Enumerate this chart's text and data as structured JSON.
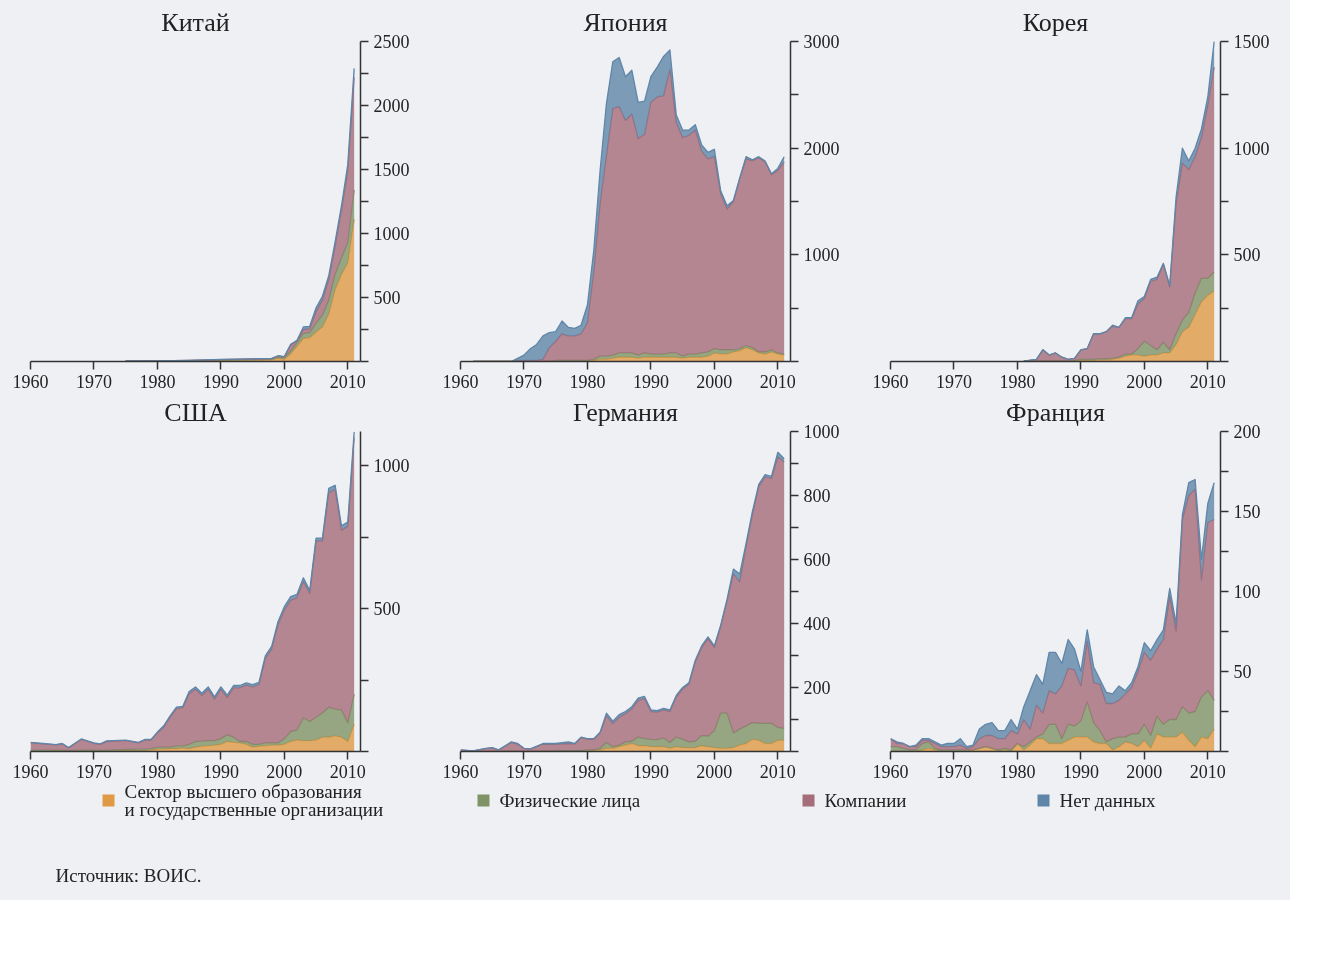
{
  "chart_data": [
    {
      "type": "area",
      "title": "Китай",
      "stacked": true,
      "legend": "bottom",
      "annotations": [
        "Источник: ВОИС."
      ],
      "xlim": [
        1960,
        2012
      ],
      "xticks": [
        1960,
        1970,
        1980,
        1990,
        2000,
        2010
      ],
      "ylim": [
        0,
        2500
      ],
      "yticks": [
        {
          "value": 0,
          "label": null
        },
        {
          "value": 250,
          "label": null
        },
        500,
        {
          "value": 750,
          "label": null
        },
        1000,
        {
          "value": 1250,
          "label": null
        },
        1500,
        {
          "value": 1750,
          "label": null
        },
        2000,
        {
          "value": 2250,
          "label": null
        },
        2500
      ],
      "x": [
        1975,
        1980,
        1985,
        1990,
        1995,
        1998,
        1999,
        2000,
        2001,
        2002,
        2003,
        2004,
        2005,
        2006,
        2007,
        2008,
        2009,
        2010,
        2011
      ],
      "series": [
        {
          "name": "Сектор высшего образования\nи государственные организации",
          "color": "#e09a45",
          "values": [
            2,
            3,
            5,
            8,
            10,
            12,
            25,
            15,
            60,
            120,
            180,
            185,
            230,
            270,
            370,
            560,
            680,
            770,
            1110
          ]
        },
        {
          "name": "Физические лица",
          "color": "#7f9366",
          "values": [
            1,
            1,
            2,
            3,
            5,
            5,
            8,
            15,
            20,
            30,
            40,
            40,
            70,
            90,
            110,
            120,
            130,
            160,
            230
          ]
        },
        {
          "name": "Компании",
          "color": "#a56c79",
          "values": [
            1,
            1,
            2,
            4,
            5,
            6,
            10,
            5,
            50,
            10,
            30,
            30,
            90,
            120,
            160,
            220,
            370,
            560,
            880
          ]
        },
        {
          "name": "Нет данных",
          "color": "#5f86a8",
          "values": [
            0,
            0,
            0,
            1,
            1,
            2,
            2,
            3,
            5,
            5,
            20,
            20,
            30,
            30,
            30,
            35,
            35,
            50,
            70
          ]
        }
      ]
    },
    {
      "type": "area",
      "title": "Япония",
      "stacked": true,
      "xlim": [
        1960,
        2012
      ],
      "xticks": [
        1960,
        1970,
        1980,
        1990,
        2000,
        2010
      ],
      "ylim": [
        0,
        3000
      ],
      "yticks": [
        {
          "value": 0,
          "label": null
        },
        {
          "value": 500,
          "label": null
        },
        1000,
        {
          "value": 1500,
          "label": null
        },
        2000,
        {
          "value": 2500,
          "label": null
        },
        3000
      ],
      "x": [
        1962,
        1968,
        1969,
        1970,
        1971,
        1972,
        1973,
        1974,
        1975,
        1976,
        1977,
        1978,
        1979,
        1980,
        1981,
        1982,
        1983,
        1984,
        1985,
        1986,
        1987,
        1988,
        1989,
        1990,
        1991,
        1992,
        1993,
        1994,
        1995,
        1996,
        1997,
        1998,
        1999,
        2000,
        2001,
        2002,
        2003,
        2004,
        2005,
        2006,
        2007,
        2008,
        2009,
        2010,
        2011
      ],
      "series": [
        {
          "color": "#e09a45",
          "values": [
            0,
            0,
            0,
            0,
            0,
            0,
            0,
            0,
            10,
            10,
            10,
            10,
            10,
            10,
            10,
            20,
            20,
            30,
            40,
            40,
            40,
            30,
            40,
            40,
            40,
            40,
            40,
            40,
            30,
            40,
            40,
            40,
            50,
            80,
            70,
            70,
            90,
            100,
            130,
            110,
            80,
            70,
            90,
            70,
            60
          ]
        },
        {
          "color": "#7f9366",
          "values": [
            0,
            0,
            0,
            0,
            0,
            0,
            0,
            0,
            0,
            0,
            0,
            0,
            0,
            0,
            10,
            30,
            30,
            30,
            40,
            40,
            40,
            30,
            40,
            30,
            30,
            30,
            40,
            40,
            20,
            30,
            30,
            40,
            40,
            40,
            40,
            40,
            20,
            20,
            20,
            20,
            10,
            20,
            20,
            10,
            10
          ]
        },
        {
          "color": "#a56c79",
          "values": [
            0,
            0,
            10,
            10,
            10,
            10,
            20,
            130,
            180,
            250,
            230,
            230,
            250,
            350,
            820,
            1430,
            1880,
            2310,
            2310,
            2180,
            2240,
            2030,
            2050,
            2360,
            2410,
            2420,
            2660,
            2160,
            2050,
            2050,
            2100,
            1890,
            1810,
            1800,
            1460,
            1320,
            1390,
            1590,
            1750,
            1750,
            1820,
            1780,
            1640,
            1710,
            1800
          ]
        },
        {
          "color": "#5f86a8",
          "values": [
            0,
            0,
            20,
            50,
            110,
            150,
            220,
            140,
            90,
            120,
            80,
            70,
            80,
            170,
            200,
            310,
            490,
            440,
            460,
            410,
            410,
            340,
            310,
            240,
            280,
            370,
            180,
            70,
            70,
            50,
            50,
            60,
            60,
            70,
            30,
            30,
            10,
            10,
            20,
            10,
            10,
            10,
            10,
            20,
            50
          ]
        }
      ]
    },
    {
      "type": "area",
      "title": "Корея",
      "stacked": true,
      "xlim": [
        1960,
        2012
      ],
      "xticks": [
        1960,
        1970,
        1980,
        1990,
        2000,
        2010
      ],
      "ylim": [
        0,
        1500
      ],
      "yticks": [
        {
          "value": 0,
          "label": null
        },
        {
          "value": 250,
          "label": null
        },
        500,
        {
          "value": 750,
          "label": null
        },
        1000,
        {
          "value": 1250,
          "label": null
        },
        1500
      ],
      "x": [
        1981,
        1983,
        1984,
        1985,
        1986,
        1987,
        1988,
        1989,
        1990,
        1991,
        1992,
        1993,
        1994,
        1995,
        1996,
        1997,
        1998,
        1999,
        2000,
        2001,
        2002,
        2003,
        2004,
        2005,
        2006,
        2007,
        2008,
        2009,
        2010,
        2011
      ],
      "series": [
        {
          "color": "#e09a45",
          "values": [
            0,
            2,
            2,
            2,
            2,
            2,
            2,
            3,
            5,
            5,
            5,
            8,
            8,
            10,
            15,
            25,
            30,
            30,
            25,
            30,
            30,
            40,
            40,
            80,
            140,
            160,
            220,
            280,
            310,
            330
          ]
        },
        {
          "color": "#7f9366",
          "values": [
            0,
            1,
            1,
            1,
            1,
            1,
            1,
            2,
            5,
            5,
            5,
            4,
            4,
            5,
            5,
            10,
            5,
            30,
            70,
            45,
            25,
            50,
            15,
            50,
            55,
            70,
            100,
            110,
            80,
            90
          ]
        },
        {
          "color": "#a56c79",
          "values": [
            2,
            7,
            52,
            27,
            37,
            17,
            7,
            10,
            45,
            50,
            120,
            118,
            128,
            150,
            140,
            165,
            165,
            210,
            200,
            300,
            330,
            365,
            295,
            610,
            735,
            670,
            640,
            660,
            810,
            960
          ]
        },
        {
          "color": "#5f86a8",
          "values": [
            0,
            0,
            0,
            0,
            0,
            0,
            0,
            0,
            0,
            0,
            0,
            0,
            0,
            5,
            0,
            5,
            5,
            15,
            10,
            10,
            10,
            5,
            5,
            30,
            70,
            40,
            40,
            40,
            40,
            120
          ]
        }
      ]
    },
    {
      "type": "area",
      "title": "США",
      "stacked": true,
      "xlim": [
        1960,
        2012
      ],
      "xticks": [
        1960,
        1970,
        1980,
        1990,
        2000,
        2010
      ],
      "ylim": [
        0,
        1120
      ],
      "yticks": [
        {
          "value": 0,
          "label": null
        },
        {
          "value": 250,
          "label": null
        },
        500,
        {
          "value": 750,
          "label": null
        },
        1000
      ],
      "x": [
        1960,
        1962,
        1964,
        1965,
        1966,
        1968,
        1970,
        1971,
        1972,
        1975,
        1977,
        1978,
        1979,
        1980,
        1981,
        1982,
        1983,
        1984,
        1985,
        1986,
        1987,
        1988,
        1989,
        1990,
        1991,
        1992,
        1993,
        1994,
        1995,
        1996,
        1997,
        1998,
        1999,
        2000,
        2001,
        2002,
        2003,
        2004,
        2005,
        2006,
        2007,
        2008,
        2009,
        2010,
        2011
      ],
      "series": [
        {
          "color": "#e09a45",
          "values": [
            0,
            0,
            0,
            0,
            0,
            2,
            2,
            2,
            2,
            3,
            3,
            3,
            5,
            8,
            8,
            10,
            10,
            12,
            10,
            15,
            18,
            20,
            22,
            25,
            35,
            32,
            30,
            25,
            15,
            18,
            20,
            22,
            22,
            25,
            35,
            40,
            38,
            38,
            40,
            50,
            50,
            55,
            50,
            35,
            95
          ]
        },
        {
          "color": "#7f9366",
          "values": [
            5,
            5,
            5,
            5,
            3,
            3,
            3,
            3,
            3,
            4,
            5,
            5,
            5,
            7,
            7,
            5,
            10,
            8,
            15,
            20,
            18,
            18,
            16,
            20,
            23,
            18,
            5,
            10,
            10,
            7,
            10,
            8,
            8,
            20,
            35,
            35,
            80,
            67,
            80,
            85,
            105,
            93,
            95,
            65,
            105
          ]
        },
        {
          "color": "#a56c79",
          "values": [
            25,
            22,
            18,
            22,
            9,
            37,
            23,
            20,
            30,
            31,
            22,
            32,
            30,
            50,
            70,
            105,
            130,
            133,
            177,
            183,
            160,
            180,
            145,
            173,
            131,
            173,
            188,
            197,
            201,
            209,
            295,
            328,
            414,
            450,
            460,
            463,
            478,
            448,
            617,
            602,
            751,
            769,
            630,
            688,
            898
          ]
        },
        {
          "color": "#5f86a8",
          "values": [
            2,
            1,
            1,
            1,
            2,
            2,
            2,
            2,
            2,
            2,
            2,
            2,
            2,
            3,
            5,
            5,
            5,
            5,
            8,
            8,
            8,
            8,
            8,
            8,
            8,
            8,
            8,
            8,
            8,
            8,
            10,
            10,
            10,
            12,
            12,
            12,
            12,
            10,
            10,
            10,
            15,
            15,
            15,
            15,
            20
          ]
        }
      ]
    },
    {
      "type": "area",
      "title": "Германия",
      "stacked": true,
      "xlim": [
        1960,
        2012
      ],
      "xticks": [
        1960,
        1970,
        1980,
        1990,
        2000,
        2010
      ],
      "ylim": [
        0,
        1000
      ],
      "yticks": [
        {
          "value": 0,
          "label": null
        },
        {
          "value": 100,
          "label": null
        },
        200,
        {
          "value": 300,
          "label": null
        },
        400,
        {
          "value": 500,
          "label": null
        },
        600,
        {
          "value": 700,
          "label": null
        },
        800,
        {
          "value": 900,
          "label": null
        },
        1000
      ],
      "x": [
        1960,
        1962,
        1964,
        1965,
        1966,
        1968,
        1969,
        1970,
        1971,
        1973,
        1975,
        1977,
        1978,
        1979,
        1980,
        1981,
        1982,
        1983,
        1984,
        1985,
        1986,
        1987,
        1988,
        1989,
        1990,
        1991,
        1992,
        1993,
        1994,
        1995,
        1996,
        1997,
        1998,
        1999,
        2000,
        2001,
        2002,
        2003,
        2004,
        2005,
        2006,
        2007,
        2008,
        2009,
        2010,
        2011
      ],
      "series": [
        {
          "color": "#e09a45",
          "values": [
            0,
            0,
            0,
            0,
            0,
            0,
            0,
            0,
            0,
            0,
            0,
            0,
            0,
            0,
            2,
            3,
            5,
            10,
            10,
            15,
            20,
            25,
            18,
            18,
            15,
            15,
            15,
            10,
            15,
            12,
            12,
            12,
            18,
            15,
            12,
            10,
            10,
            12,
            20,
            25,
            38,
            35,
            25,
            25,
            35,
            35
          ]
        },
        {
          "color": "#7f9366",
          "values": [
            0,
            0,
            0,
            0,
            0,
            2,
            2,
            1,
            1,
            2,
            3,
            3,
            3,
            3,
            3,
            2,
            5,
            18,
            5,
            5,
            10,
            7,
            27,
            22,
            23,
            22,
            27,
            18,
            30,
            26,
            18,
            20,
            32,
            33,
            53,
            110,
            110,
            46,
            50,
            55,
            52,
            53,
            63,
            63,
            40,
            37
          ]
        },
        {
          "color": "#a56c79",
          "values": [
            4,
            2,
            9,
            11,
            4,
            26,
            21,
            8,
            6,
            21,
            19,
            22,
            20,
            40,
            33,
            33,
            48,
            84,
            72,
            87,
            88,
            101,
            115,
            125,
            87,
            86,
            88,
            97,
            125,
            157,
            180,
            248,
            275,
            305,
            260,
            270,
            350,
            497,
            460,
            560,
            650,
            740,
            770,
            765,
            845,
            833
          ]
        },
        {
          "color": "#5f86a8",
          "values": [
            1,
            0,
            1,
            1,
            1,
            2,
            2,
            1,
            1,
            2,
            3,
            5,
            2,
            2,
            2,
            2,
            2,
            8,
            8,
            8,
            7,
            7,
            7,
            7,
            5,
            5,
            5,
            5,
            5,
            5,
            5,
            5,
            5,
            5,
            5,
            5,
            5,
            15,
            25,
            10,
            10,
            7,
            7,
            7,
            15,
            10
          ]
        }
      ]
    },
    {
      "type": "area",
      "title": "Франция",
      "stacked": true,
      "xlim": [
        1960,
        2012
      ],
      "xticks": [
        1960,
        1970,
        1980,
        1990,
        2000,
        2010
      ],
      "ylim": [
        0,
        200
      ],
      "yticks": [
        {
          "value": 0,
          "label": null
        },
        {
          "value": 25,
          "label": null
        },
        50,
        {
          "value": 75,
          "label": null
        },
        100,
        {
          "value": 125,
          "label": null
        },
        150,
        {
          "value": 175,
          "label": null
        },
        200
      ],
      "x": [
        1960,
        1961,
        1962,
        1963,
        1964,
        1965,
        1966,
        1967,
        1968,
        1969,
        1970,
        1971,
        1972,
        1973,
        1974,
        1975,
        1976,
        1977,
        1978,
        1979,
        1980,
        1981,
        1982,
        1983,
        1984,
        1985,
        1986,
        1987,
        1988,
        1989,
        1990,
        1991,
        1992,
        1993,
        1994,
        1995,
        1996,
        1997,
        1998,
        1999,
        2000,
        2001,
        2002,
        2003,
        2004,
        2005,
        2006,
        2007,
        2008,
        2009,
        2010,
        2011
      ],
      "series": [
        {
          "color": "#e09a45",
          "values": [
            0,
            0,
            0,
            0,
            0,
            1,
            2,
            1,
            0,
            0,
            0,
            0,
            0,
            1,
            2,
            3,
            2,
            0,
            1,
            0,
            5,
            1,
            4,
            8,
            8,
            5,
            5,
            5,
            7,
            9,
            9,
            9,
            6,
            5,
            5,
            1,
            3,
            6,
            5,
            3,
            7,
            2,
            11,
            9,
            9,
            9,
            12,
            7,
            3,
            9,
            8,
            14
          ]
        },
        {
          "color": "#7f9366",
          "values": [
            3,
            3,
            2,
            1,
            1,
            4,
            4,
            1,
            1,
            1,
            1,
            1,
            1,
            0,
            0,
            0,
            0,
            1,
            1,
            1,
            0,
            2,
            2,
            1,
            3,
            12,
            12,
            3,
            10,
            7,
            10,
            22,
            12,
            8,
            1,
            7,
            6,
            3,
            6,
            8,
            10,
            8,
            11,
            8,
            11,
            11,
            16,
            17,
            22,
            25,
            30,
            18
          ]
        },
        {
          "color": "#a56c79",
          "values": [
            5,
            2,
            3,
            2,
            2,
            2,
            1,
            3,
            2,
            2,
            2,
            3,
            1,
            2,
            6,
            7,
            8,
            7,
            6,
            12,
            6,
            17,
            8,
            20,
            13,
            21,
            19,
            33,
            35,
            35,
            22,
            38,
            25,
            29,
            24,
            22,
            23,
            27,
            29,
            39,
            45,
            47,
            42,
            53,
            77,
            55,
            117,
            136,
            139,
            73,
            105,
            113
          ]
        },
        {
          "color": "#5f86a8",
          "values": [
            0,
            1,
            0,
            0,
            1,
            1,
            1,
            1,
            1,
            2,
            2,
            4,
            1,
            1,
            6,
            7,
            8,
            5,
            5,
            7,
            3,
            8,
            24,
            19,
            18,
            24,
            26,
            14,
            18,
            13,
            9,
            7,
            10,
            3,
            7,
            6,
            9,
            2,
            3,
            3,
            6,
            6,
            6,
            6,
            5,
            5,
            3,
            8,
            6,
            13,
            12,
            23
          ]
        }
      ]
    }
  ]
}
